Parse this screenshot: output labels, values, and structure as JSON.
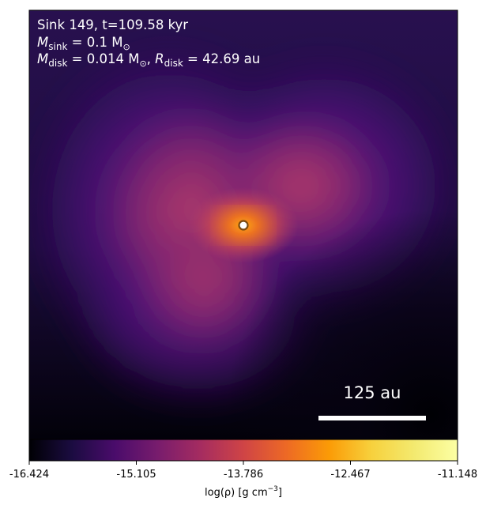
{
  "plot": {
    "type": "density-map",
    "colormap": "inferno",
    "annotation": {
      "line1": "Sink 149, t=109.58 kyr",
      "line2_symbol": "M",
      "line2_subscript": "sink",
      "line2_value": " = 0.1 M",
      "line2_unit_sub": "⊙",
      "line3_m_symbol": "M",
      "line3_m_subscript": "disk",
      "line3_m_value": " = 0.014 M",
      "line3_m_unit_sub": "⊙",
      "line3_sep": ", ",
      "line3_r_symbol": "R",
      "line3_r_subscript": "disk",
      "line3_r_value": " = 42.69 au"
    },
    "scalebar": {
      "label": "125 au",
      "color": "#ffffff"
    },
    "sink_marker": {
      "fill": "#ffffff",
      "stroke": "#7a4a10"
    }
  },
  "colorbar": {
    "min": -16.424,
    "max": -11.148,
    "ticks": [
      "-16.424",
      "-15.105",
      "-13.786",
      "-12.467",
      "-11.148"
    ],
    "label": "log(ρ) [g cm",
    "label_sup": "−3",
    "label_close": "]"
  }
}
